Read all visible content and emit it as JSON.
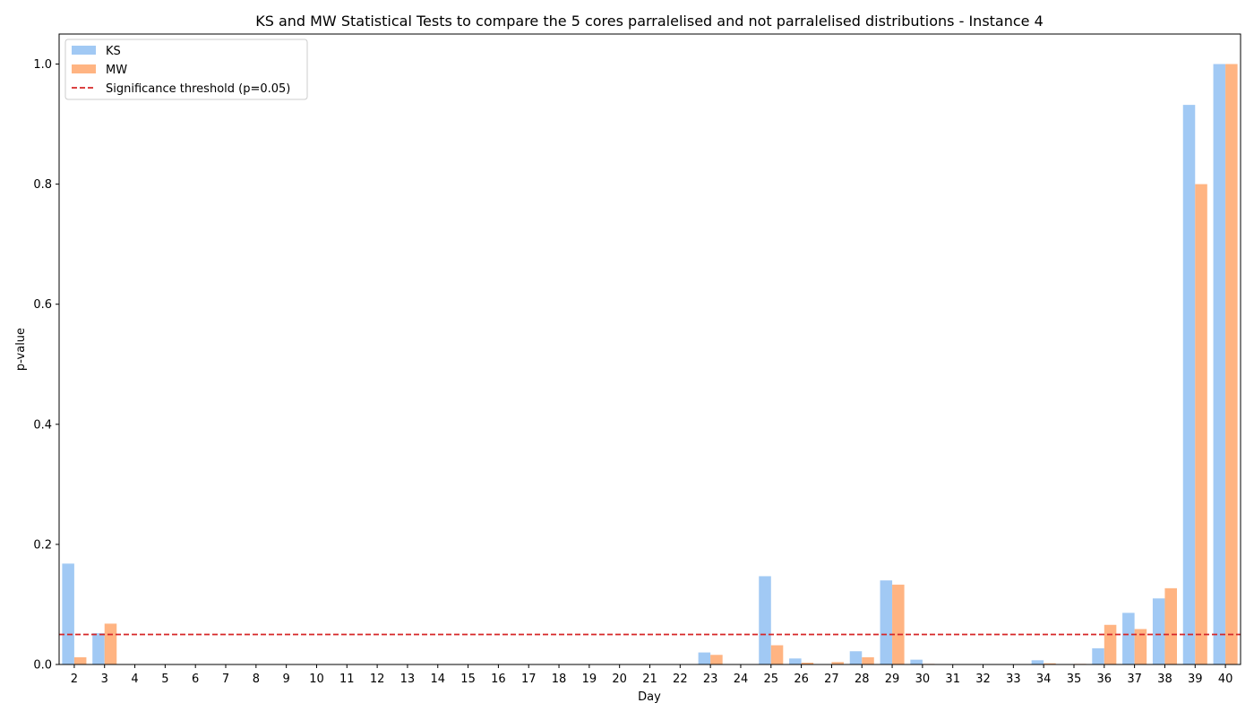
{
  "chart_data": {
    "type": "bar",
    "title": "KS and MW Statistical Tests to compare the 5 cores parralelised and not parralelised distributions - Instance 4",
    "xlabel": "Day",
    "ylabel": "p-value",
    "ylim": [
      0,
      1.05
    ],
    "yticks": [
      "0.0",
      "0.2",
      "0.4",
      "0.6",
      "0.8",
      "1.0"
    ],
    "categories": [
      "2",
      "3",
      "4",
      "5",
      "6",
      "7",
      "8",
      "9",
      "10",
      "11",
      "12",
      "13",
      "14",
      "15",
      "16",
      "17",
      "18",
      "19",
      "20",
      "21",
      "22",
      "23",
      "24",
      "25",
      "26",
      "27",
      "28",
      "29",
      "30",
      "31",
      "32",
      "33",
      "34",
      "35",
      "36",
      "37",
      "38",
      "39",
      "40"
    ],
    "series": [
      {
        "name": "KS",
        "color": "#a1c9f4",
        "values": [
          0.168,
          0.052,
          0,
          0,
          0,
          0,
          0,
          0,
          0,
          0,
          0,
          0,
          0,
          0,
          0,
          0,
          0,
          0,
          0,
          0,
          0,
          0.02,
          0,
          0.147,
          0.01,
          0,
          0.022,
          0.14,
          0.008,
          0,
          0,
          0,
          0.007,
          0,
          0.027,
          0.086,
          0.11,
          0.932,
          1.0
        ]
      },
      {
        "name": "MW",
        "color": "#ffb482",
        "values": [
          0.012,
          0.068,
          0,
          0,
          0,
          0,
          0,
          0,
          0,
          0,
          0,
          0,
          0,
          0,
          0,
          0,
          0,
          0,
          0,
          0,
          0,
          0.016,
          0,
          0.032,
          0.003,
          0.004,
          0.012,
          0.133,
          0.001,
          0,
          0,
          0,
          0.002,
          0.001,
          0.066,
          0.059,
          0.127,
          0.8,
          1.0
        ]
      }
    ],
    "threshold": {
      "label": "Significance threshold (p=0.05)",
      "value": 0.05,
      "color": "#d62728"
    },
    "legend": "top-left",
    "grid": false
  }
}
